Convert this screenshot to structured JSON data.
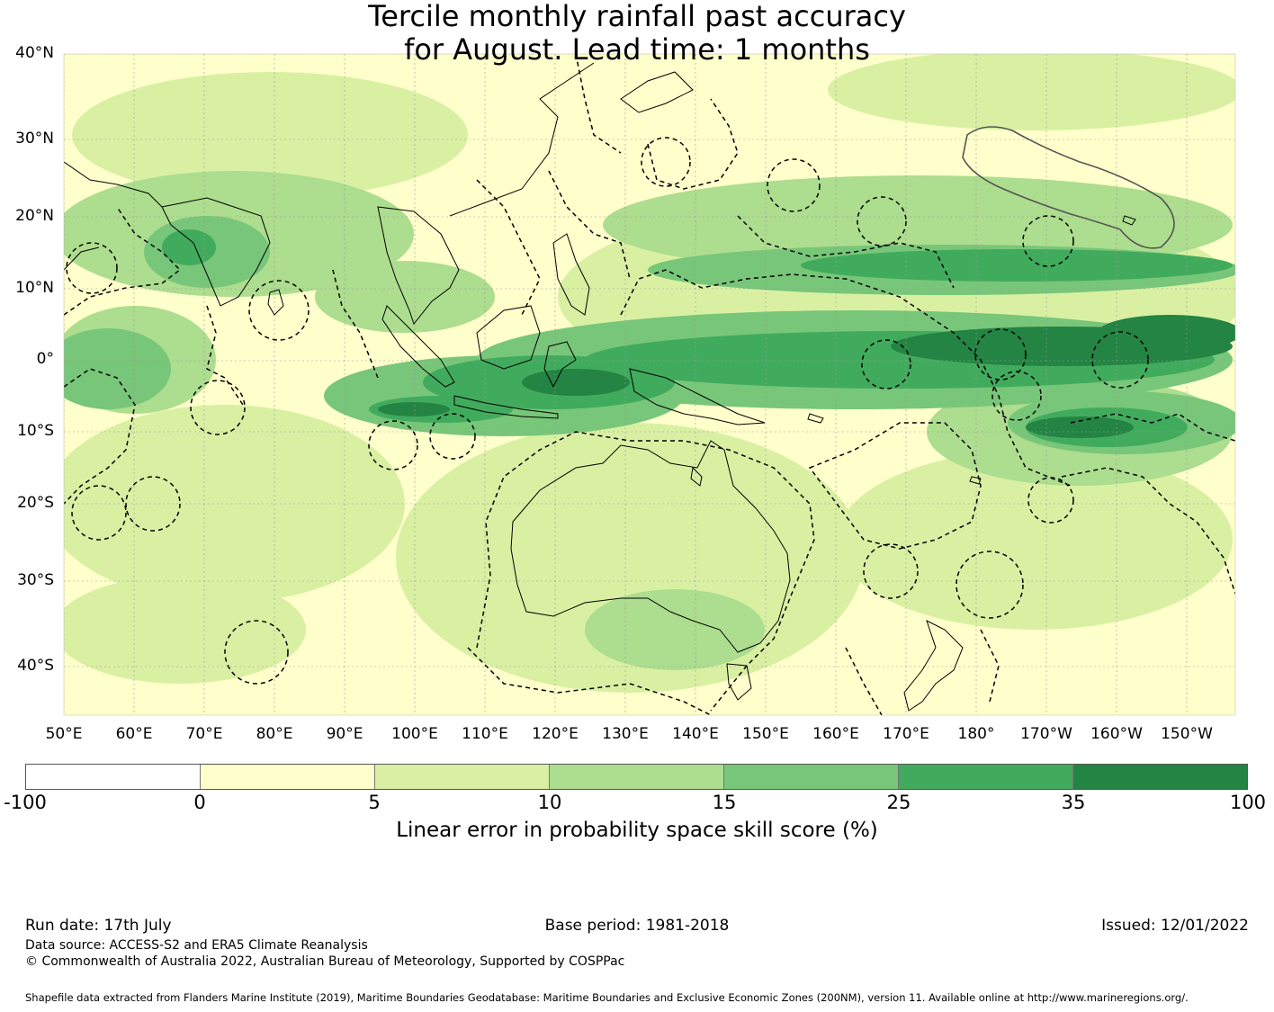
{
  "title": {
    "line1": "Tercile monthly rainfall past accuracy",
    "line2": "for August. Lead time: 1 months"
  },
  "map": {
    "lat_labels": [
      "40°N",
      "30°N",
      "20°N",
      "10°N",
      "0°",
      "10°S",
      "20°S",
      "30°S",
      "40°S"
    ],
    "lon_labels": [
      "50°E",
      "60°E",
      "70°E",
      "80°E",
      "90°E",
      "100°E",
      "110°E",
      "120°E",
      "130°E",
      "140°E",
      "150°E",
      "160°E",
      "170°E",
      "180°",
      "170°W",
      "160°W",
      "150°W"
    ]
  },
  "legend": {
    "ticks": [
      "-100",
      "0",
      "5",
      "10",
      "15",
      "25",
      "35",
      "100"
    ],
    "colors": [
      "#ffffff",
      "#ffffcc",
      "#d9f0a3",
      "#addd8e",
      "#78c679",
      "#41ab5d",
      "#238443"
    ],
    "label": "Linear error in probability space skill score (%)"
  },
  "footer": {
    "run_date": "Run date: 17th July",
    "base_period": "Base period: 1981-2018",
    "issued": "Issued: 12/01/2022",
    "data_source": "Data source: ACCESS-S2 and ERA5 Climate Reanalysis",
    "copyright": "© Commonwealth of Australia 2022, Australian Bureau of Meteorology, Supported by COSPPac",
    "shapefile": "Shapefile data extracted from Flanders Marine Institute (2019), Maritime Boundaries Geodatabase: Maritime Boundaries and Exclusive Economic Zones (200NM), version 11. Available online at http://www.marineregions.org/."
  }
}
